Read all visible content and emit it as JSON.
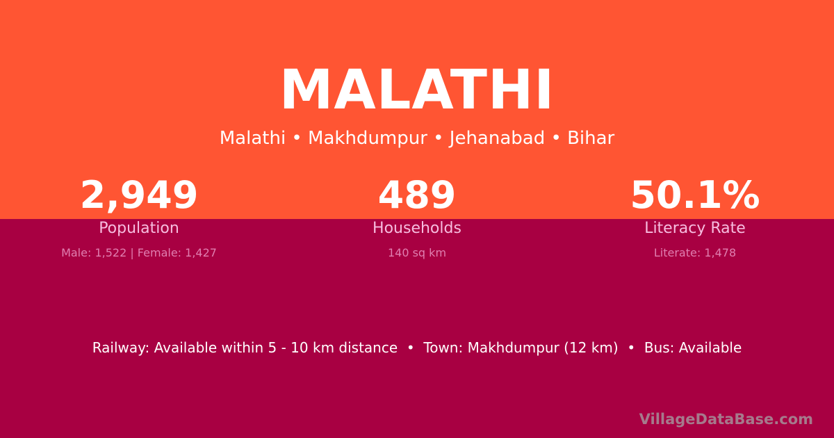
{
  "colors": {
    "top_background": "#ff5533",
    "bottom_background": "#a80042"
  },
  "title": "MALATHI",
  "subtitle": "Malathi • Makhdumpur • Jehanabad • Bihar",
  "stats": [
    {
      "value": "2,949",
      "label": "Population",
      "sub": "Male: 1,522 | Female: 1,427"
    },
    {
      "value": "489",
      "label": "Households",
      "sub": "140 sq km"
    },
    {
      "value": "50.1%",
      "label": "Literacy Rate",
      "sub": "Literate: 1,478"
    }
  ],
  "info": "Railway: Available within 5 - 10 km distance  •  Town: Makhdumpur (12 km)  •  Bus: Available",
  "watermark": "VillageDataBase.com"
}
